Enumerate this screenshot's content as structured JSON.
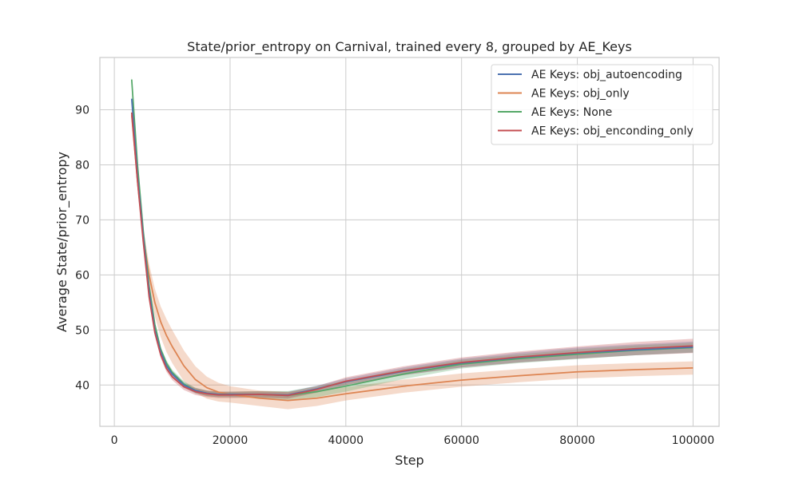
{
  "chart_data": {
    "type": "line",
    "title": "State/prior_entropy on Carnival, trained every 8, grouped by AE_Keys",
    "xlabel": "Step",
    "ylabel": "Average State/prior_entropy",
    "xlim": [
      -2500,
      104500
    ],
    "ylim": [
      32.5,
      99.5
    ],
    "xticks": [
      0,
      20000,
      40000,
      60000,
      80000,
      100000
    ],
    "yticks": [
      40,
      50,
      60,
      70,
      80,
      90
    ],
    "grid": true,
    "legend_position": "top-right",
    "series": [
      {
        "name": "AE Keys: obj_autoencoding",
        "color": "#4c72b0",
        "x": [
          3000,
          4000,
          5000,
          6000,
          7000,
          8000,
          9000,
          10000,
          12000,
          14000,
          16000,
          18000,
          20000,
          25000,
          30000,
          35000,
          40000,
          50000,
          60000,
          70000,
          80000,
          90000,
          100000
        ],
        "y": [
          92,
          78,
          67,
          57,
          50,
          46,
          43.5,
          42,
          40,
          39,
          38.5,
          38.3,
          38.3,
          38.3,
          38.2,
          39.3,
          40.6,
          42.5,
          44,
          45,
          45.8,
          46.4,
          46.9
        ],
        "band": [
          0.6,
          0.6,
          0.6,
          0.6,
          0.5,
          0.5,
          0.5,
          0.5,
          0.5,
          0.5,
          0.5,
          0.5,
          0.5,
          0.5,
          0.6,
          0.6,
          0.6,
          0.7,
          0.8,
          0.9,
          1.0,
          1.0,
          1.0
        ]
      },
      {
        "name": "AE Keys: obj_only",
        "color": "#dd8452",
        "x": [
          3000,
          4000,
          5000,
          6000,
          7000,
          8000,
          9000,
          10000,
          12000,
          14000,
          16000,
          18000,
          20000,
          25000,
          30000,
          35000,
          40000,
          50000,
          60000,
          70000,
          80000,
          90000,
          100000
        ],
        "y": [
          89,
          77,
          67,
          60,
          55,
          51.5,
          49,
          47,
          43.5,
          41,
          39.5,
          38.7,
          38.3,
          37.6,
          37.2,
          37.6,
          38.4,
          39.8,
          40.9,
          41.7,
          42.4,
          42.8,
          43.1
        ],
        "band": [
          0.8,
          1,
          1.5,
          2,
          2.5,
          2.8,
          3,
          3,
          2.8,
          2.4,
          2,
          1.7,
          1.5,
          1.4,
          1.6,
          1.4,
          1.2,
          1.2,
          1.2,
          1.2,
          1.2,
          1.2,
          1.2
        ]
      },
      {
        "name": "AE Keys: None",
        "color": "#55a868",
        "x": [
          3000,
          4000,
          5000,
          6000,
          7000,
          8000,
          9000,
          10000,
          12000,
          14000,
          16000,
          18000,
          20000,
          25000,
          30000,
          35000,
          40000,
          50000,
          60000,
          70000,
          80000,
          90000,
          100000
        ],
        "y": [
          95.5,
          80,
          68,
          58,
          51,
          46.5,
          44,
          42.3,
          40.2,
          39,
          38.5,
          38.3,
          38.3,
          38.3,
          38.1,
          38.8,
          39.8,
          42,
          43.8,
          44.8,
          45.6,
          46.3,
          46.8
        ],
        "band": [
          0.6,
          0.6,
          0.6,
          0.6,
          0.5,
          0.5,
          0.5,
          0.5,
          0.5,
          0.5,
          0.5,
          0.5,
          0.5,
          0.6,
          0.8,
          1.0,
          1.0,
          0.9,
          0.8,
          0.8,
          0.9,
          0.9,
          0.9
        ]
      },
      {
        "name": "AE Keys: obj_enconding_only",
        "color": "#c44e52",
        "x": [
          3000,
          4000,
          5000,
          6000,
          7000,
          8000,
          9000,
          10000,
          12000,
          14000,
          16000,
          18000,
          20000,
          25000,
          30000,
          35000,
          40000,
          50000,
          60000,
          70000,
          80000,
          90000,
          100000
        ],
        "y": [
          89.5,
          77,
          66,
          56,
          49.5,
          45.5,
          43,
          41.5,
          39.7,
          38.8,
          38.4,
          38.2,
          38.2,
          38.3,
          38.1,
          39.2,
          40.7,
          42.6,
          44.1,
          45.1,
          45.9,
          46.6,
          47.1
        ],
        "band": [
          0.6,
          0.6,
          0.6,
          0.6,
          0.6,
          0.6,
          0.6,
          0.6,
          0.6,
          0.6,
          0.6,
          0.6,
          0.6,
          0.6,
          0.6,
          0.6,
          0.7,
          0.8,
          0.9,
          1.0,
          1.1,
          1.2,
          1.3
        ]
      }
    ]
  }
}
